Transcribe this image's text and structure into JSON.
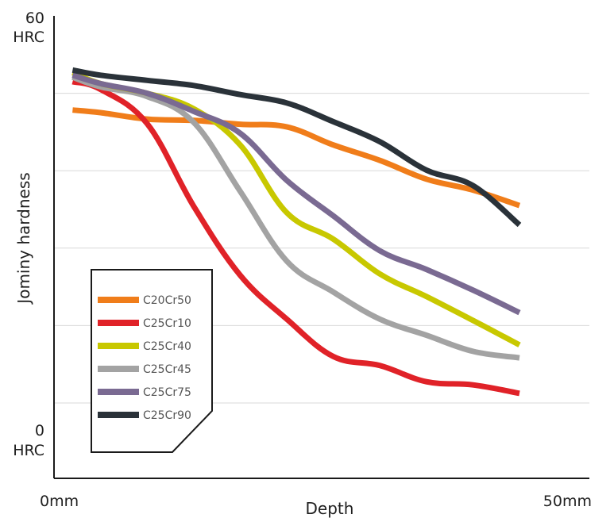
{
  "chart_data": {
    "type": "line",
    "xlabel": "Depth",
    "ylabel": "Jominy hardness",
    "x_tick_labels": {
      "min": "0mm",
      "max": "50mm"
    },
    "y_tick_labels": {
      "top_value": "60",
      "top_unit": "HRC",
      "bottom_value": "0",
      "bottom_unit": "HRC"
    },
    "xlim": [
      0,
      50
    ],
    "ylim": [
      0,
      60
    ],
    "grid": "horizontal",
    "legend_position": "bottom-left",
    "x": [
      2,
      5,
      10,
      15,
      20,
      25,
      30,
      35,
      40,
      45,
      50
    ],
    "series": [
      {
        "name": "C20Cr50",
        "color": "#f07d1a",
        "values": [
          45.4,
          45.0,
          44.0,
          43.8,
          43.2,
          42.8,
          40.0,
          37.6,
          34.7,
          33.0,
          30.6
        ]
      },
      {
        "name": "C25Cr10",
        "color": "#e02228",
        "values": [
          49.8,
          48.6,
          43.3,
          30.5,
          19.8,
          13.0,
          7.2,
          5.8,
          3.3,
          2.8,
          1.5
        ]
      },
      {
        "name": "C25Cr40",
        "color": "#c8c800",
        "values": [
          51.2,
          49.5,
          48.0,
          45.6,
          40.0,
          29.5,
          25.4,
          20.0,
          16.5,
          12.8,
          9.0
        ]
      },
      {
        "name": "C25Cr45",
        "color": "#a3a3a3",
        "values": [
          50.5,
          49.0,
          47.5,
          43.5,
          32.8,
          22.0,
          17.2,
          13.0,
          10.5,
          8.0,
          7.0
        ]
      },
      {
        "name": "C25Cr75",
        "color": "#7a6a92",
        "values": [
          50.8,
          49.5,
          48.0,
          45.2,
          41.8,
          34.5,
          29.0,
          23.6,
          20.7,
          17.5,
          14.0
        ]
      },
      {
        "name": "C25Cr90",
        "color": "#2a3239",
        "values": [
          51.6,
          50.8,
          50.0,
          49.2,
          47.8,
          46.5,
          43.6,
          40.5,
          36.1,
          33.7,
          27.6
        ]
      }
    ]
  }
}
